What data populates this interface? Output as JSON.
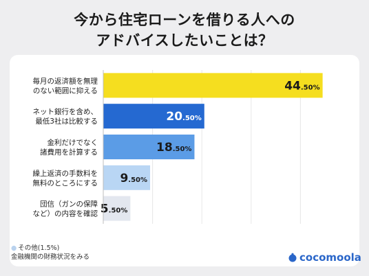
{
  "title_line1": "今から住宅ローンを借りる人への",
  "title_line2": "アドバイスしたいことは？",
  "footnote": {
    "line1": "その他(1.5%)",
    "line2": "金融機関の財務状況をみる"
  },
  "logo": {
    "text": "cocomoola",
    "icon": "piggy-bank-icon",
    "color": "#2a66c9"
  },
  "chart_data": {
    "type": "bar",
    "orientation": "horizontal",
    "categories": [
      [
        "毎月の返済額を無理",
        "のない範囲に抑える"
      ],
      [
        "ネット銀行を含め、",
        "最低3社は比較する"
      ],
      [
        "金利だけでなく",
        "諸費用を計算する"
      ],
      [
        "繰上返済の手数料を",
        "無料のところにする"
      ],
      [
        "団信（ガンの保障",
        "など）の内容を確認"
      ]
    ],
    "values": [
      44.5,
      20.5,
      18.5,
      9.5,
      5.5
    ],
    "labels": [
      {
        "int": "44",
        "dec": ".50%"
      },
      {
        "int": "20",
        "dec": ".50%"
      },
      {
        "int": "18",
        "dec": ".50%"
      },
      {
        "int": "9",
        "dec": ".50%"
      },
      {
        "int": "5",
        "dec": ".50%"
      }
    ],
    "colors": [
      "#f5de1f",
      "#2569d1",
      "#5b9ce6",
      "#b9d6f4",
      "#e3e7ef"
    ],
    "label_colors": [
      "#1a1a1a",
      "#ffffff",
      "#1a1a1a",
      "#1a1a1a",
      "#1a1a1a"
    ],
    "xlim": [
      0,
      50
    ],
    "grid": true,
    "xlabel": "",
    "ylabel": ""
  }
}
